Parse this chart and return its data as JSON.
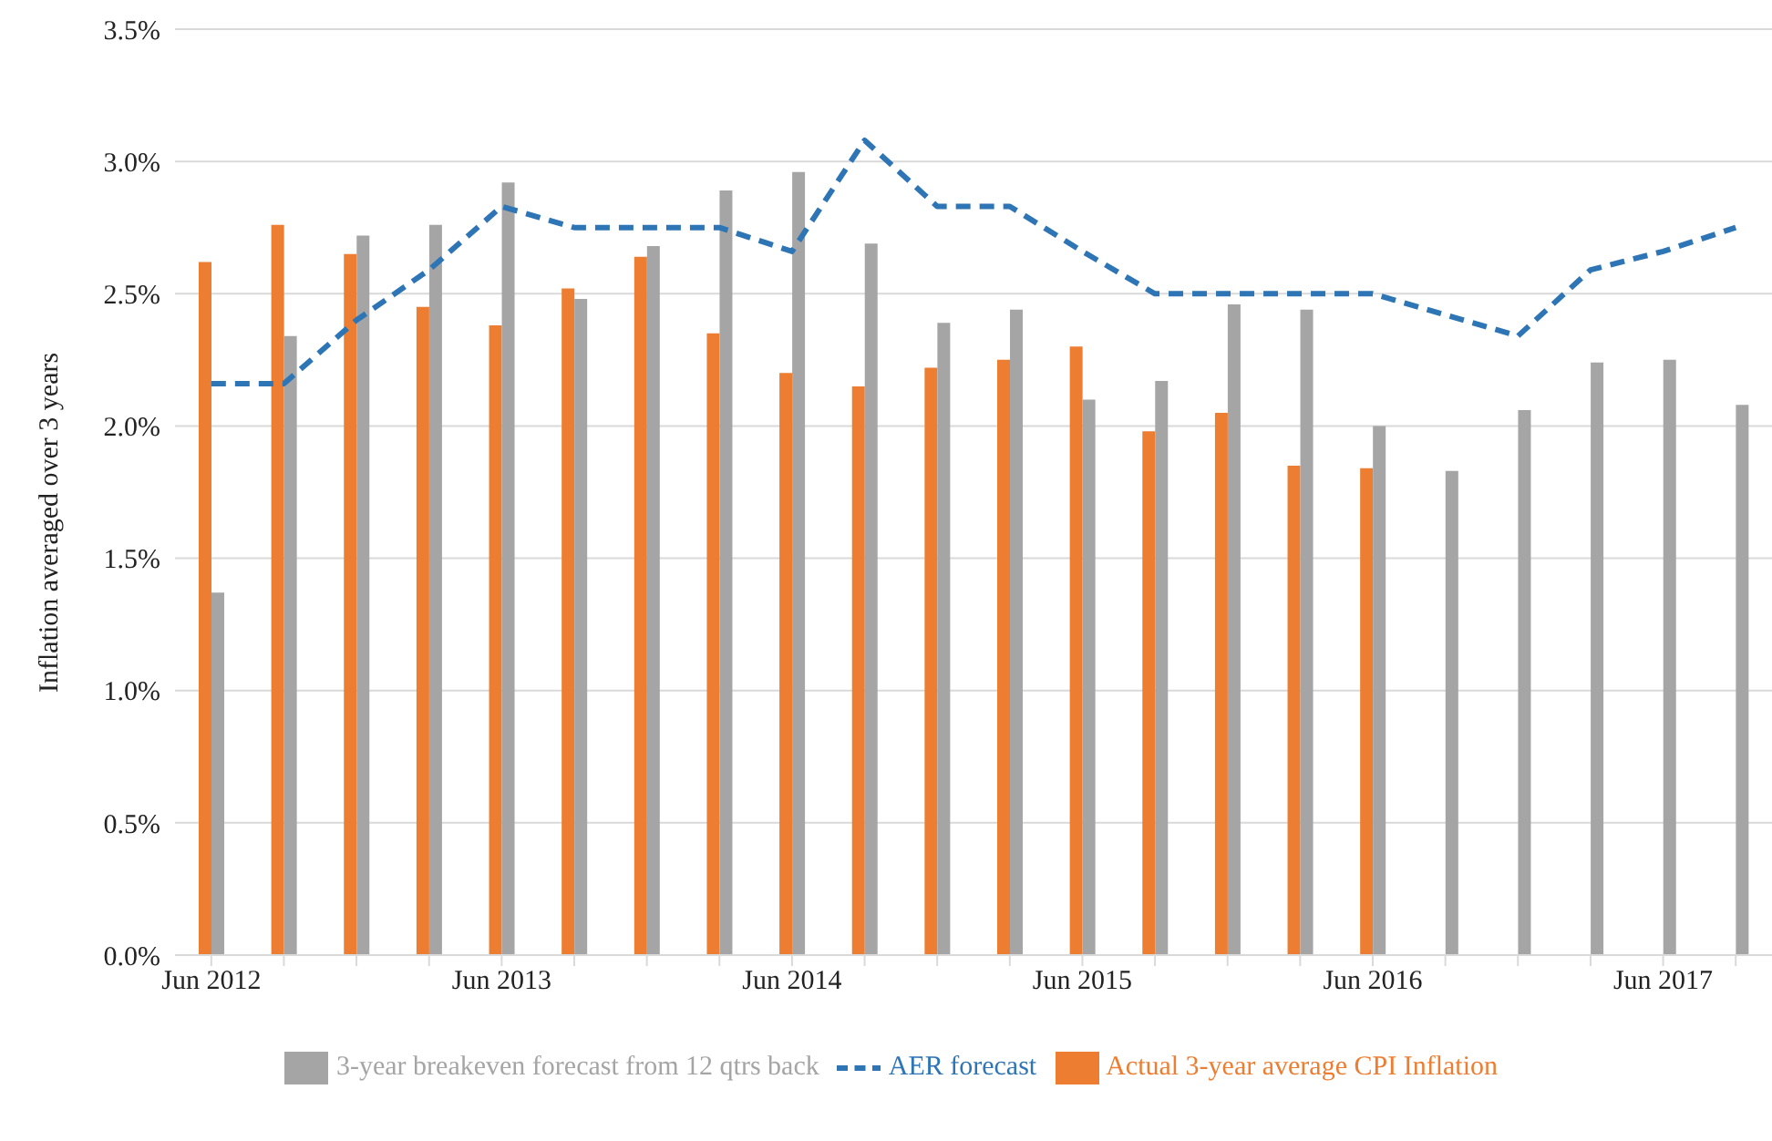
{
  "chart_data": {
    "type": "bar",
    "ylabel": "Inflation averaged over 3 years",
    "categories": [
      "Jun 2012",
      null,
      null,
      null,
      "Jun 2013",
      null,
      null,
      null,
      "Jun 2014",
      null,
      null,
      null,
      "Jun 2015",
      null,
      null,
      null,
      "Jun 2016",
      null,
      null,
      null,
      "Jun 2017",
      null
    ],
    "series": [
      {
        "name": "Actual 3-year average CPI Inflation",
        "color": "#ed7d31",
        "values": [
          2.62,
          2.76,
          2.65,
          2.45,
          2.38,
          2.52,
          2.64,
          2.35,
          2.2,
          2.15,
          2.22,
          2.25,
          2.3,
          1.98,
          2.05,
          1.85,
          1.84,
          null,
          null,
          null,
          null,
          null
        ]
      },
      {
        "name": "3-year breakeven forecast from 12 qtrs back",
        "color": "#a5a5a5",
        "values": [
          1.37,
          2.34,
          2.72,
          2.76,
          2.92,
          2.48,
          2.68,
          2.89,
          2.96,
          2.69,
          2.39,
          2.44,
          2.1,
          2.17,
          2.46,
          2.44,
          2.0,
          1.83,
          2.06,
          2.24,
          2.25,
          2.08
        ]
      },
      {
        "name": "AER forecast",
        "type": "line",
        "color": "#2e75b6",
        "line_style": "dashed",
        "marker": "none",
        "values": [
          2.16,
          2.16,
          2.4,
          2.59,
          2.83,
          2.75,
          2.75,
          2.75,
          2.66,
          3.08,
          2.83,
          2.83,
          2.66,
          2.5,
          2.5,
          2.5,
          2.5,
          2.42,
          2.34,
          2.59,
          2.66,
          2.75
        ]
      }
    ],
    "ylim": [
      0,
      3.5
    ],
    "yticks": [
      {
        "value": 0,
        "label": "0.0%"
      },
      {
        "value": 0.5,
        "label": "0.5%"
      },
      {
        "value": 1,
        "label": "1.0%"
      },
      {
        "value": 1.5,
        "label": "1.5%"
      },
      {
        "value": 2,
        "label": "2.0%"
      },
      {
        "value": 2.5,
        "label": "2.5%"
      },
      {
        "value": 3,
        "label": "3.0%"
      },
      {
        "value": 3.5,
        "label": "3.5%"
      }
    ],
    "grid": "y",
    "legend": "bottom"
  }
}
